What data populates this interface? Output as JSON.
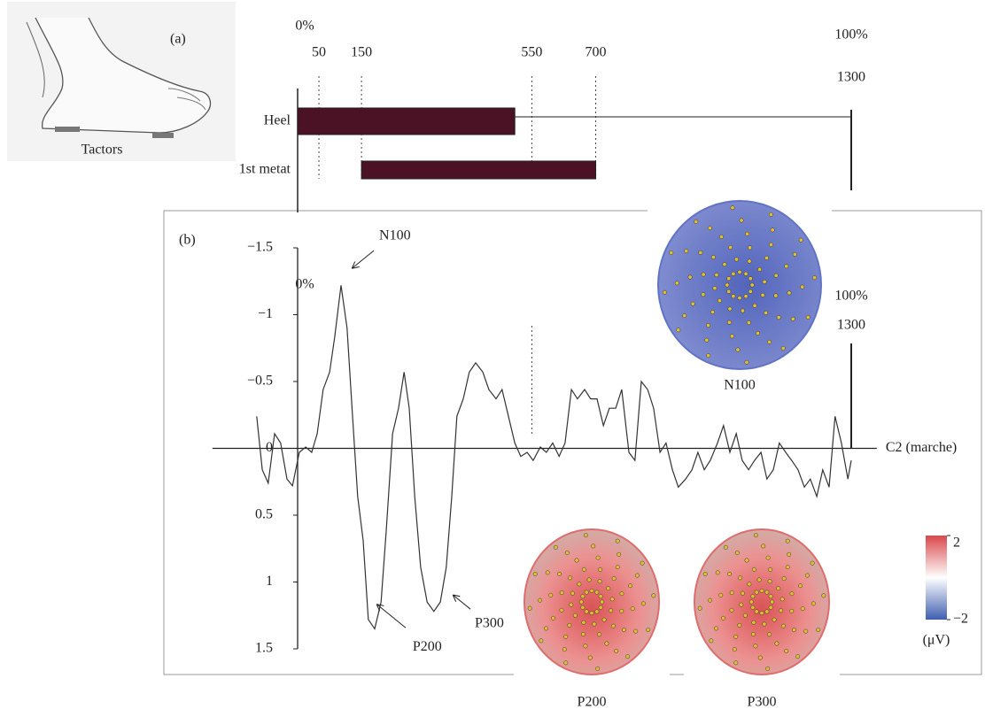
{
  "chart_data": [
    {
      "type": "timeline",
      "panel_label": "(a)",
      "image_caption": "Tactors",
      "start_label": "0%",
      "end_label": "100%",
      "xlim": [
        0,
        1300
      ],
      "xticks": [
        50,
        150,
        550,
        700,
        1300
      ],
      "categories": [
        "Heel",
        "1st metat"
      ],
      "values": [
        [
          0,
          510
        ],
        [
          150,
          700
        ]
      ],
      "color": "#4a1224"
    },
    {
      "type": "line",
      "panel_label": "(b)",
      "series_label": "C2 (marche)",
      "color": "#333333",
      "x": [
        -96,
        -83,
        -69,
        -54,
        -40,
        -25,
        -12,
        4,
        19,
        33,
        46,
        60,
        75,
        87,
        102,
        116,
        129,
        141,
        154,
        166,
        181,
        196,
        208,
        223,
        237,
        250,
        262,
        275,
        289,
        304,
        320,
        335,
        349,
        362,
        374,
        389,
        403,
        418,
        435,
        449,
        466,
        480,
        495,
        510,
        524,
        539,
        553,
        570,
        584,
        599,
        614,
        628,
        643,
        657,
        674,
        688,
        703,
        718,
        732,
        747,
        761,
        778,
        792,
        807,
        822,
        836,
        851,
        865,
        880,
        894,
        911,
        926,
        940,
        955,
        969,
        986,
        1000,
        1015,
        1030,
        1044,
        1059,
        1073,
        1088,
        1102,
        1117,
        1131,
        1146,
        1160,
        1175,
        1190,
        1204,
        1219,
        1233,
        1248,
        1262,
        1277,
        1292,
        1300
      ],
      "values": [
        -0.24,
        0.16,
        0.26,
        -0.11,
        -0.04,
        0.23,
        0.28,
        0.03,
        -0.01,
        0.03,
        -0.11,
        -0.44,
        -0.57,
        -0.83,
        -1.22,
        -0.9,
        -0.24,
        0.36,
        0.69,
        1.28,
        1.35,
        1.15,
        0.62,
        -0.11,
        -0.3,
        -0.57,
        -0.3,
        0.36,
        0.89,
        1.15,
        1.22,
        1.15,
        0.89,
        0.36,
        -0.24,
        -0.37,
        -0.57,
        -0.64,
        -0.57,
        -0.44,
        -0.37,
        -0.44,
        -0.24,
        -0.04,
        0.06,
        0.03,
        0.09,
        -0.01,
        0.03,
        -0.04,
        0.06,
        -0.04,
        -0.44,
        -0.37,
        -0.44,
        -0.37,
        -0.37,
        -0.17,
        -0.3,
        -0.3,
        -0.44,
        0.03,
        0.09,
        -0.5,
        -0.44,
        -0.3,
        0.03,
        -0.04,
        0.16,
        0.29,
        0.23,
        0.16,
        0.03,
        0.16,
        0.09,
        -0.04,
        -0.17,
        0.03,
        -0.11,
        0.09,
        0.16,
        0.09,
        0.03,
        0.23,
        0.16,
        -0.04,
        0.03,
        0.09,
        0.16,
        0.29,
        0.23,
        0.36,
        0.16,
        0.29,
        -0.24,
        -0.04,
        0.23,
        0.09
      ],
      "xlim": [
        -200,
        1360
      ],
      "ylim": [
        -1.5,
        1.5
      ],
      "y_inverted": true,
      "yticks": [
        {
          "value": -1.5,
          "label": "−1.5"
        },
        {
          "value": -1,
          "label": "−1"
        },
        {
          "value": -0.5,
          "label": "−0.5"
        },
        0,
        0.5,
        1,
        1.5
      ],
      "annotations": [
        {
          "text": "N100",
          "x": 129,
          "y": -1.35
        },
        {
          "text": "P200",
          "x": 187,
          "y": 1.17
        },
        {
          "text": "P300",
          "x": 366,
          "y": 1.1
        }
      ],
      "overlay": {
        "start_label": "0%",
        "end_label": "100%",
        "end_value": 1300,
        "marker": 550
      },
      "topomaps": [
        {
          "label": "N100",
          "color": "#5a6cc4"
        },
        {
          "label": "P200",
          "color": "#e06464"
        },
        {
          "label": "P300",
          "color": "#e06464"
        }
      ],
      "colorbar": {
        "lim": [
          -2,
          2
        ],
        "ticks": [
          2,
          {
            "value": -2,
            "label": "−2"
          }
        ],
        "unit": "(μV)",
        "colors": [
          "#d9474a",
          "#ffffff",
          "#3f5fb0"
        ]
      }
    }
  ]
}
